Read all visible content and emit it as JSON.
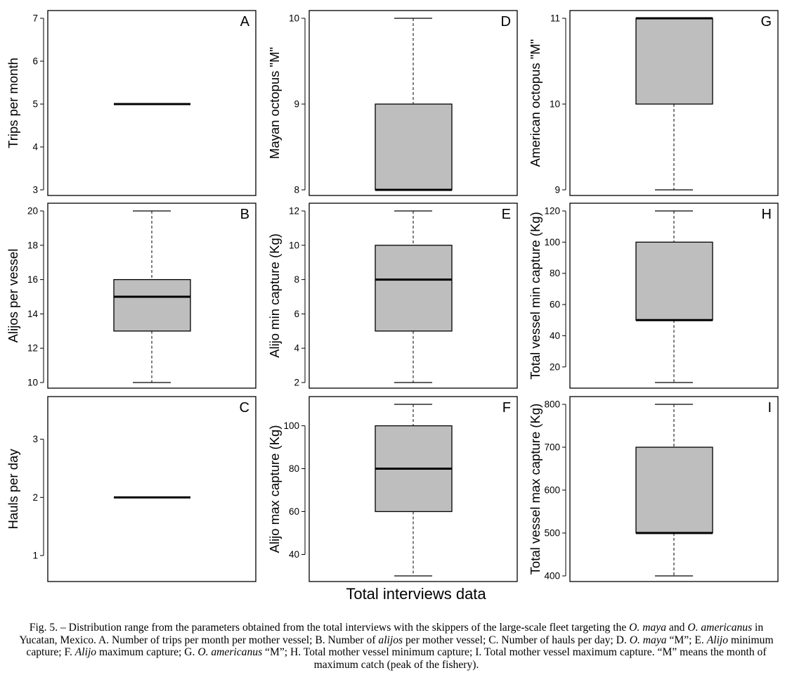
{
  "x_axis_title": "Total interviews data",
  "chart_data": [
    {
      "panel": "A",
      "type": "box",
      "ylabel": "Trips per month",
      "ylim": [
        3,
        7
      ],
      "yticks": [
        3,
        4,
        5,
        6,
        7
      ],
      "box": {
        "min": 5,
        "q1": 5,
        "median": 5,
        "q3": 5,
        "max": 5
      }
    },
    {
      "panel": "B",
      "type": "box",
      "ylabel": "Alijos per vessel",
      "ylim": [
        10,
        20
      ],
      "yticks": [
        10,
        12,
        14,
        16,
        18,
        20
      ],
      "box": {
        "min": 10,
        "q1": 13,
        "median": 15,
        "q3": 16,
        "max": 20
      }
    },
    {
      "panel": "C",
      "type": "box",
      "ylabel": "Hauls per day",
      "ylim": [
        0.65,
        3.6
      ],
      "yticks": [
        1,
        2,
        3
      ],
      "box": {
        "min": 2,
        "q1": 2,
        "median": 2,
        "q3": 2,
        "max": 2
      }
    },
    {
      "panel": "D",
      "type": "box",
      "ylabel": "Mayan octopus \"M\"",
      "ylim": [
        8,
        10
      ],
      "yticks": [
        8,
        9,
        10
      ],
      "box": {
        "min": 8,
        "q1": 8,
        "median": 8,
        "q3": 9,
        "max": 10
      }
    },
    {
      "panel": "E",
      "type": "box",
      "ylabel": "Alijo min capture (Kg)",
      "ylim": [
        2,
        12
      ],
      "yticks": [
        2,
        4,
        6,
        8,
        10,
        12
      ],
      "box": {
        "min": 2,
        "q1": 5,
        "median": 8,
        "q3": 10,
        "max": 12
      }
    },
    {
      "panel": "F",
      "type": "box",
      "ylabel": "Alijo max capture (Kg)",
      "ylim": [
        30,
        110
      ],
      "yticks": [
        40,
        60,
        80,
        100
      ],
      "box": {
        "min": 30,
        "q1": 60,
        "median": 80,
        "q3": 100,
        "max": 110
      }
    },
    {
      "panel": "G",
      "type": "box",
      "ylabel": "American octopus \"M\"",
      "ylim": [
        9,
        11
      ],
      "yticks": [
        9,
        10,
        11
      ],
      "box": {
        "min": 9,
        "q1": 10,
        "median": 11,
        "q3": 11,
        "max": 11
      }
    },
    {
      "panel": "H",
      "type": "box",
      "ylabel": "Total vessel min capture (Kg)",
      "ylim": [
        10,
        120
      ],
      "yticks": [
        20,
        40,
        60,
        80,
        100,
        120
      ],
      "box": {
        "min": 10,
        "q1": 50,
        "median": 50,
        "q3": 100,
        "max": 120
      }
    },
    {
      "panel": "I",
      "type": "box",
      "ylabel": "Total vessel max capture (Kg)",
      "ylim": [
        400,
        800
      ],
      "yticks": [
        400,
        500,
        600,
        700,
        800
      ],
      "box": {
        "min": 400,
        "q1": 500,
        "median": 500,
        "q3": 700,
        "max": 800
      }
    }
  ],
  "caption": {
    "parts": [
      {
        "t": "Fig. 5. – Distribution range from the parameters obtained from the total interviews with the skippers of the large-scale fleet targeting the ",
        "i": false
      },
      {
        "t": "O. maya",
        "i": true
      },
      {
        "t": " and ",
        "i": false
      },
      {
        "t": "O. americanus",
        "i": true
      },
      {
        "t": " in Yucatan, Mexico. A. Number of trips per month per mother vessel; B. Number of ",
        "i": false
      },
      {
        "t": "alijos",
        "i": true
      },
      {
        "t": " per mother vessel; C. Number of hauls per day; D. ",
        "i": false
      },
      {
        "t": "O. maya",
        "i": true
      },
      {
        "t": " “M”; E. ",
        "i": false
      },
      {
        "t": "Alijo",
        "i": true
      },
      {
        "t": " minimum capture; F. ",
        "i": false
      },
      {
        "t": "Alijo",
        "i": true
      },
      {
        "t": " maximum capture; G. ",
        "i": false
      },
      {
        "t": "O. americanus",
        "i": true
      },
      {
        "t": " “M”; H. Total mother vessel minimum capture; I. Total mother vessel maximum capture. “M” means the month of maximum catch (peak of the fishery).",
        "i": false
      }
    ]
  }
}
